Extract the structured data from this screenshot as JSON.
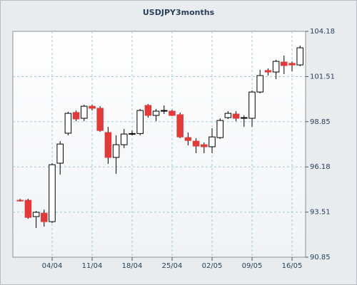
{
  "chart_data": {
    "type": "candlestick",
    "title": "USDJPY3months",
    "categories": [
      null,
      null,
      null,
      null,
      "04/04",
      null,
      null,
      null,
      null,
      "11/04",
      null,
      null,
      null,
      null,
      "18/04",
      null,
      null,
      null,
      null,
      "25/04",
      null,
      null,
      null,
      null,
      "02/05",
      null,
      null,
      null,
      null,
      "09/05",
      null,
      null,
      null,
      null,
      "16/05",
      null
    ],
    "open": [
      94.21,
      94.21,
      93.25,
      93.45,
      92.95,
      96.4,
      98.17,
      99.39,
      99.05,
      99.76,
      99.64,
      98.21,
      96.74,
      97.49,
      98.12,
      98.15,
      99.81,
      99.22,
      99.47,
      99.47,
      99.26,
      97.91,
      97.7,
      97.49,
      97.37,
      97.91,
      99.09,
      99.3,
      99.05,
      99.05,
      100.6,
      101.87,
      101.78,
      102.37,
      102.29,
      102.2
    ],
    "high": [
      94.3,
      94.3,
      93.58,
      93.66,
      96.4,
      97.7,
      99.43,
      99.51,
      99.85,
      99.85,
      99.76,
      98.54,
      98.04,
      98.42,
      98.33,
      99.6,
      99.89,
      99.6,
      99.81,
      99.55,
      99.39,
      98.21,
      97.87,
      97.62,
      98.46,
      99.05,
      99.47,
      99.47,
      99.22,
      100.69,
      101.91,
      101.99,
      102.5,
      102.75,
      102.41,
      103.34
    ],
    "low": [
      94.13,
      93.12,
      92.57,
      92.66,
      92.87,
      95.73,
      98.04,
      98.88,
      98.88,
      99.51,
      98.25,
      96.36,
      95.77,
      97.28,
      98.04,
      98.04,
      99.09,
      98.88,
      99.3,
      99.18,
      97.87,
      97.45,
      96.99,
      96.99,
      96.99,
      97.83,
      99.01,
      98.88,
      98.54,
      98.54,
      100.52,
      101.57,
      101.36,
      101.66,
      101.82,
      102.12
    ],
    "close": [
      94.2,
      93.2,
      93.5,
      92.95,
      96.31,
      97.53,
      99.34,
      99.01,
      99.76,
      99.64,
      98.33,
      96.74,
      97.49,
      98.12,
      98.15,
      99.51,
      99.22,
      99.47,
      99.51,
      99.22,
      97.95,
      97.74,
      97.41,
      97.37,
      97.95,
      98.92,
      99.34,
      99.05,
      99.09,
      100.6,
      101.57,
      101.78,
      102.41,
      102.16,
      102.2,
      103.21
    ],
    "up_color": "#ffffff",
    "down_color": "#e03a3a",
    "ylim": [
      90.85,
      104.18
    ],
    "yticks": [
      90.85,
      93.51,
      96.18,
      98.85,
      101.51,
      104.18
    ],
    "grid": true
  }
}
